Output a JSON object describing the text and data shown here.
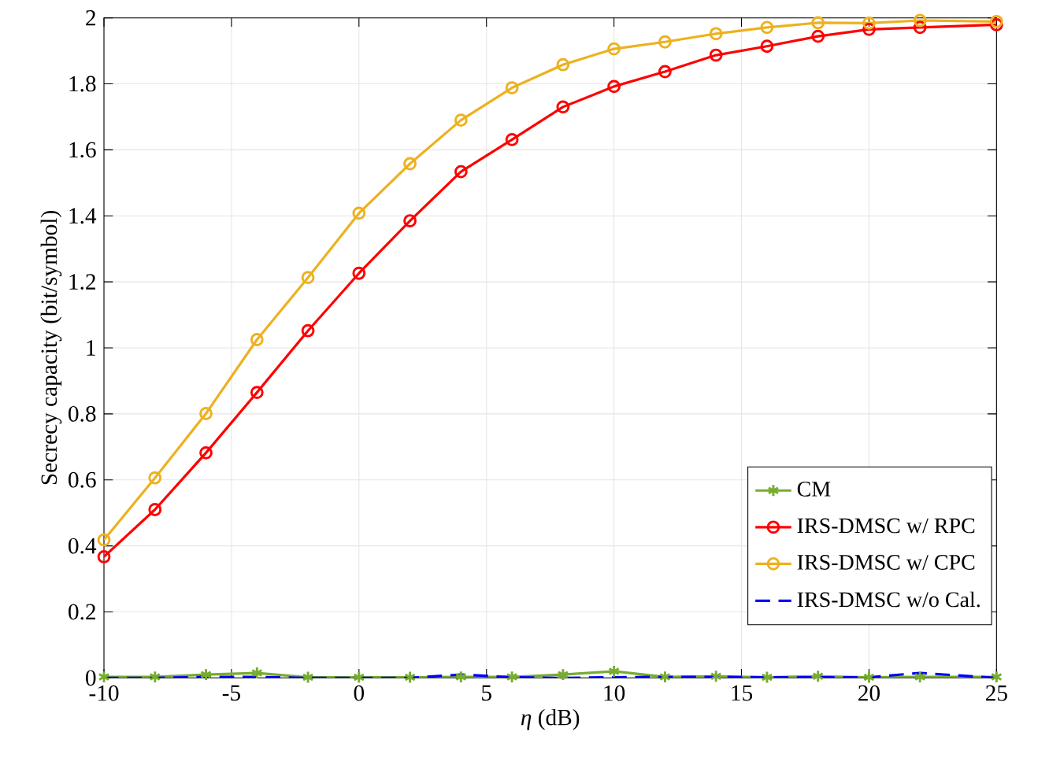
{
  "chart_data": {
    "type": "line",
    "xlabel": "*η* (dB)",
    "ylabel": "Secrecy capacity (bit/symbol)",
    "x": [
      -10,
      -8,
      -6,
      -4,
      -2,
      0,
      2,
      4,
      6,
      8,
      10,
      12,
      14,
      16,
      18,
      20,
      22,
      25
    ],
    "series": [
      {
        "name": "CM",
        "color": "#77ac30",
        "marker": "cross",
        "line_style": "solid",
        "values": [
          0.003,
          0.003,
          0.01,
          0.015,
          0.002,
          0.002,
          0.002,
          0.003,
          0.003,
          0.01,
          0.02,
          0.003,
          0.005,
          0.002,
          0.005,
          0.002,
          0.003,
          0.003
        ]
      },
      {
        "name": "IRS-DMSC w/ RPC",
        "color": "#ff0000",
        "marker": "circle",
        "line_style": "solid",
        "values": [
          0.367,
          0.51,
          0.682,
          0.865,
          1.052,
          1.226,
          1.385,
          1.534,
          1.631,
          1.73,
          1.792,
          1.837,
          1.887,
          1.914,
          1.944,
          1.965,
          1.971,
          1.979
        ]
      },
      {
        "name": "IRS-DMSC w/ CPC",
        "color": "#edb120",
        "marker": "circle",
        "line_style": "solid",
        "values": [
          0.418,
          0.606,
          0.801,
          1.025,
          1.213,
          1.408,
          1.558,
          1.69,
          1.788,
          1.858,
          1.906,
          1.927,
          1.952,
          1.971,
          1.985,
          1.984,
          1.992,
          1.989
        ]
      },
      {
        "name": "IRS-DMSC w/o Cal.",
        "color": "#0000ff",
        "marker": "none",
        "line_style": "dashed",
        "values": [
          0.0,
          0.0,
          0.003,
          0.003,
          0.0,
          0.0,
          0.0,
          0.01,
          0.002,
          0.0,
          0.002,
          0.003,
          0.003,
          0.002,
          0.002,
          0.002,
          0.015,
          0.0
        ]
      }
    ],
    "xlim": [
      -10,
      25
    ],
    "ylim": [
      0,
      2
    ],
    "xticks": [
      -10,
      -5,
      0,
      5,
      10,
      15,
      20,
      25
    ],
    "yticks": [
      0,
      0.2,
      0.4,
      0.6,
      0.8,
      1,
      1.2,
      1.4,
      1.6,
      1.8,
      2
    ],
    "grid": true,
    "legend": "bottom right"
  }
}
